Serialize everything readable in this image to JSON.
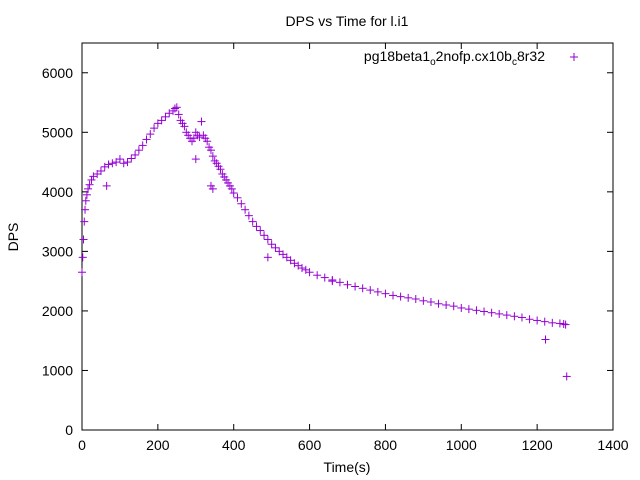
{
  "chart_data": {
    "type": "scatter",
    "title": "DPS vs Time for l.i1",
    "xlabel": "Time(s)",
    "ylabel": "DPS",
    "xlim": [
      0,
      1400
    ],
    "ylim": [
      0,
      6500
    ],
    "x_ticks": [
      0,
      200,
      400,
      600,
      800,
      1000,
      1200,
      1400
    ],
    "y_ticks": [
      0,
      1000,
      2000,
      3000,
      4000,
      5000,
      6000
    ],
    "grid": false,
    "legend_position": "top-right",
    "marker": "+",
    "color": "#9400d3",
    "series": [
      {
        "name_parts": [
          "pg18beta1",
          "o",
          "2nofp.cx10b",
          "c",
          "8r32"
        ],
        "name_formatting": [
          "normal",
          "subscript",
          "normal",
          "subscript",
          "normal"
        ],
        "x": [
          0,
          2,
          4,
          6,
          8,
          10,
          13,
          16,
          20,
          25,
          30,
          40,
          50,
          60,
          70,
          80,
          90,
          100,
          110,
          120,
          130,
          140,
          150,
          160,
          170,
          180,
          190,
          200,
          210,
          220,
          230,
          240,
          245,
          250,
          255,
          260,
          265,
          270,
          275,
          280,
          285,
          290,
          295,
          300,
          305,
          310,
          315,
          320,
          325,
          330,
          335,
          340,
          345,
          350,
          355,
          360,
          365,
          370,
          375,
          380,
          385,
          390,
          395,
          400,
          410,
          420,
          430,
          440,
          450,
          460,
          470,
          480,
          490,
          500,
          510,
          520,
          530,
          540,
          550,
          560,
          570,
          580,
          590,
          600,
          620,
          640,
          660,
          680,
          700,
          720,
          740,
          760,
          780,
          800,
          820,
          840,
          860,
          880,
          900,
          920,
          940,
          960,
          980,
          1000,
          1020,
          1040,
          1060,
          1080,
          1100,
          1120,
          1140,
          1160,
          1180,
          1200,
          1220,
          1240,
          1260,
          1270,
          1275,
          65,
          300,
          340,
          345,
          490,
          660,
          1222,
          1278
        ],
        "y": [
          2650,
          2900,
          3200,
          3500,
          3700,
          3850,
          3950,
          4050,
          4120,
          4200,
          4260,
          4300,
          4350,
          4420,
          4460,
          4480,
          4500,
          4550,
          4480,
          4500,
          4560,
          4620,
          4700,
          4780,
          4880,
          4970,
          5070,
          5150,
          5200,
          5260,
          5320,
          5360,
          5400,
          5420,
          5300,
          5200,
          5150,
          5100,
          5000,
          4950,
          4900,
          4850,
          4900,
          5000,
          4950,
          4920,
          5180,
          4950,
          4900,
          4850,
          4750,
          4700,
          4600,
          4520,
          4480,
          4430,
          4380,
          4300,
          4250,
          4200,
          4150,
          4100,
          4050,
          3980,
          3900,
          3800,
          3700,
          3600,
          3500,
          3420,
          3350,
          3270,
          3200,
          3120,
          3060,
          3000,
          2950,
          2900,
          2850,
          2800,
          2760,
          2720,
          2690,
          2650,
          2600,
          2560,
          2520,
          2480,
          2440,
          2410,
          2380,
          2350,
          2320,
          2290,
          2260,
          2240,
          2220,
          2200,
          2170,
          2150,
          2120,
          2100,
          2080,
          2050,
          2030,
          2010,
          1990,
          1970,
          1950,
          1930,
          1910,
          1890,
          1860,
          1840,
          1820,
          1800,
          1790,
          1780,
          1770,
          4100,
          4550,
          4100,
          4050,
          2900,
          2500,
          1520,
          900
        ]
      }
    ]
  }
}
